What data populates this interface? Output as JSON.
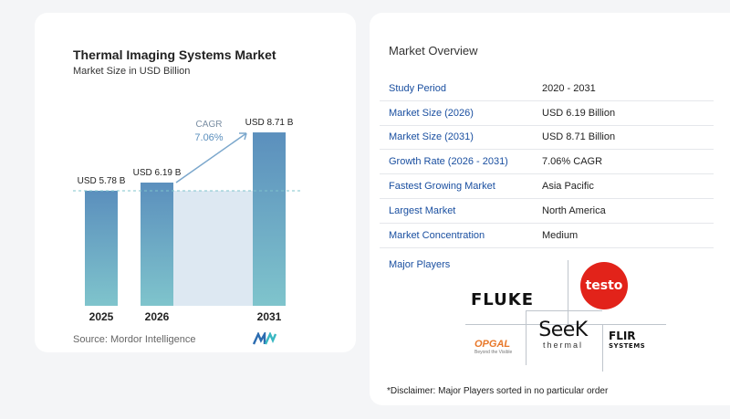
{
  "chart": {
    "title": "Thermal Imaging Systems Market",
    "subtitle": "Market Size in USD Billion",
    "source": "Source:  Mordor Intelligence",
    "cagr_label": "CAGR",
    "cagr_value": "7.06%"
  },
  "chart_data": {
    "type": "bar",
    "categories": [
      "2025",
      "2026",
      "2031"
    ],
    "values": [
      5.78,
      6.19,
      8.71
    ],
    "value_labels": [
      "USD 5.78 B",
      "USD 6.19 B",
      "USD 8.71 B"
    ],
    "title": "Thermal Imaging Systems Market",
    "subtitle": "Market Size in USD Billion",
    "xlabel": "",
    "ylabel": "",
    "ylim": [
      0,
      9.4
    ],
    "reference_line": 5.78,
    "colors": {
      "bar_top": "#5b8fbd",
      "bar_bottom": "#7fc4cc",
      "shade": "#dde8f2",
      "arrow": "#7ba7cc",
      "dashed": "#7fc4cc"
    }
  },
  "overview": {
    "title": "Market Overview",
    "rows": [
      {
        "key": "Study Period",
        "value": "2020 - 2031"
      },
      {
        "key": "Market Size (2026)",
        "value": "USD 6.19 Billion"
      },
      {
        "key": "Market Size (2031)",
        "value": "USD 8.71 Billion"
      },
      {
        "key": "Growth Rate (2026 - 2031)",
        "value": "7.06% CAGR"
      },
      {
        "key": "Fastest Growing Market",
        "value": "Asia Pacific"
      },
      {
        "key": "Largest Market",
        "value": "North America"
      },
      {
        "key": "Market Concentration",
        "value": "Medium"
      }
    ],
    "players_label": "Major Players",
    "players": {
      "fluke": "FLUKE",
      "testo": "testo",
      "seek_main": "SeeK",
      "seek_sub": "thermal",
      "flir_main": "FLIR",
      "flir_sub": "SYSTEMS",
      "opgal_main": "OPGAL",
      "opgal_sub": "Beyond the Visible"
    },
    "disclaimer": "*Disclaimer: Major Players sorted in no particular order"
  }
}
